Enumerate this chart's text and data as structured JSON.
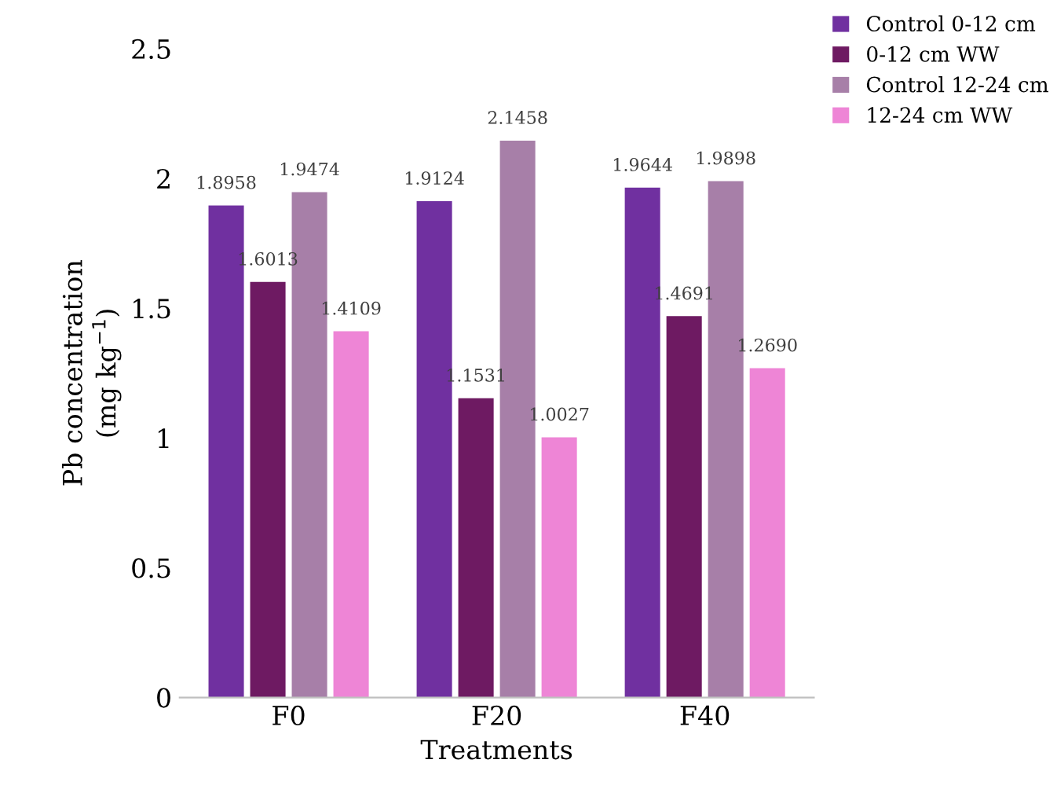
{
  "chart_data": {
    "type": "bar",
    "xlabel": "Treatments",
    "ylabel": "Pb concentration\n(mg kg$^{−1}$)",
    "categories": [
      "F0",
      "F20",
      "F40"
    ],
    "series": [
      {
        "name": "Control 0-12 cm",
        "color": "#7030a0",
        "values": [
          1.8958,
          1.9124,
          1.9644
        ],
        "value_labels": [
          "1.8958",
          "1.9124",
          "1.9644"
        ]
      },
      {
        "name": "0-12 cm WW",
        "color": "#6e1a62",
        "values": [
          1.6013,
          1.1531,
          1.4691
        ],
        "value_labels": [
          "1.6013",
          "1.1531",
          "1.4691"
        ]
      },
      {
        "name": "Control 12-24 cm",
        "color": "#a77fa8",
        "values": [
          1.9474,
          2.1458,
          1.9898
        ],
        "value_labels": [
          "1.9474",
          "2.1458",
          "1.9898"
        ]
      },
      {
        "name": "12-24 cm WW",
        "color": "#ee85d6",
        "values": [
          1.4109,
          1.0027,
          1.269
        ],
        "value_labels": [
          "1.4109",
          "1.0027",
          "1.2690"
        ]
      }
    ],
    "ylim": [
      0,
      2.5
    ],
    "yticks": [
      0,
      0.5,
      1,
      1.5,
      2,
      2.5
    ],
    "grid": false,
    "legend": "top right"
  }
}
